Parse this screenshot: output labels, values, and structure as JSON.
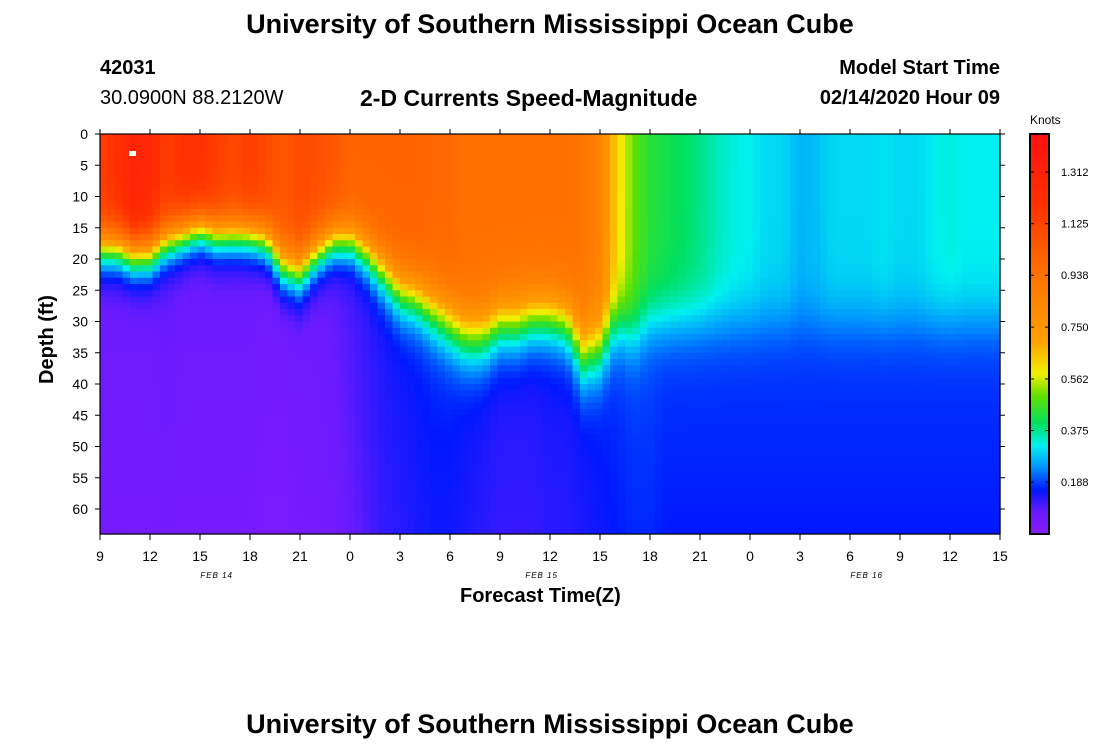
{
  "page": {
    "title_top": "University of Southern Mississippi Ocean Cube",
    "title_bottom": "University of Southern Mississippi Ocean Cube",
    "station_id": "42031",
    "station_coords": "30.0900N 88.2120W",
    "plot_title": "2-D Currents Speed-Magnitude",
    "model_start_label": "Model Start Time",
    "model_start_value": "02/14/2020 Hour 09"
  },
  "chart_data": {
    "type": "heatmap",
    "title": "2-D Currents Speed-Magnitude",
    "xlabel": "Forecast Time(Z)",
    "ylabel": "Depth (ft)",
    "x_ticks": [
      "9",
      "12",
      "15",
      "18",
      "21",
      "0",
      "3",
      "6",
      "9",
      "12",
      "15",
      "18",
      "21",
      "0",
      "3",
      "6",
      "9",
      "12",
      "15"
    ],
    "x_range_hours": [
      0,
      54
    ],
    "date_labels": [
      {
        "text": "FEB 14",
        "hour": 7
      },
      {
        "text": "FEB 15",
        "hour": 26.5
      },
      {
        "text": "FEB 16",
        "hour": 46
      }
    ],
    "y_ticks": [
      0,
      5,
      10,
      15,
      20,
      25,
      30,
      35,
      40,
      45,
      50,
      55,
      60
    ],
    "ylim": [
      0,
      64
    ],
    "colorbar": {
      "label": "Knots",
      "ticks": [
        "1.312",
        "1.125",
        "0.938",
        "0.750",
        "0.562",
        "0.375",
        "0.188"
      ],
      "tick_values": [
        1.312,
        1.125,
        0.938,
        0.75,
        0.562,
        0.375,
        0.188
      ],
      "range": [
        0,
        1.45
      ]
    },
    "profile_hours": [
      0,
      1,
      2,
      3,
      4,
      5,
      6,
      7,
      8,
      9,
      10,
      11,
      12,
      13,
      14,
      15,
      16,
      17,
      18,
      19,
      20,
      21,
      22,
      23,
      24,
      25,
      26,
      27,
      28,
      29,
      30,
      31,
      32,
      33,
      34,
      35,
      36,
      37,
      38,
      39,
      40,
      41,
      42,
      43,
      44,
      45,
      46,
      47,
      48,
      49,
      50,
      51,
      52,
      53,
      54
    ],
    "surface_speed_knots": [
      1.15,
      1.2,
      1.3,
      1.25,
      1.15,
      1.2,
      1.2,
      1.15,
      1.1,
      1.15,
      1.1,
      1.05,
      1.1,
      1.08,
      1.05,
      1.0,
      1.0,
      1.0,
      1.0,
      1.0,
      0.98,
      0.98,
      0.95,
      0.95,
      0.95,
      0.95,
      0.95,
      0.95,
      0.95,
      0.92,
      0.85,
      0.62,
      0.5,
      0.44,
      0.42,
      0.4,
      0.38,
      0.35,
      0.33,
      0.32,
      0.3,
      0.3,
      0.27,
      0.28,
      0.3,
      0.3,
      0.3,
      0.31,
      0.3,
      0.3,
      0.32,
      0.33,
      0.32,
      0.32,
      0.32
    ],
    "mixed_layer_depth_ft": [
      18,
      18,
      19,
      19,
      17,
      16,
      15,
      16,
      16,
      16,
      17,
      21,
      22,
      19,
      17,
      17,
      19,
      22,
      25,
      26,
      28,
      30,
      32,
      32,
      30,
      30,
      29,
      29,
      30,
      35,
      34,
      30,
      32,
      30,
      30,
      30,
      30,
      30,
      30,
      30,
      30,
      30,
      30,
      30,
      30,
      30,
      30,
      30,
      30,
      30,
      30,
      30,
      30,
      30,
      30
    ],
    "bottom_speed_knots": [
      0.05,
      0.05,
      0.05,
      0.05,
      0.06,
      0.05,
      0.05,
      0.05,
      0.05,
      0.05,
      0.04,
      0.04,
      0.05,
      0.05,
      0.06,
      0.08,
      0.1,
      0.12,
      0.13,
      0.14,
      0.15,
      0.15,
      0.14,
      0.13,
      0.12,
      0.12,
      0.12,
      0.13,
      0.13,
      0.14,
      0.15,
      0.16,
      0.17,
      0.17,
      0.16,
      0.16,
      0.16,
      0.16,
      0.16,
      0.16,
      0.16,
      0.16,
      0.16,
      0.16,
      0.16,
      0.16,
      0.16,
      0.16,
      0.16,
      0.16,
      0.16,
      0.16,
      0.16,
      0.16,
      0.16
    ],
    "color_stops": [
      {
        "value": 0.0,
        "color": "#8a1aff"
      },
      {
        "value": 0.08,
        "color": "#6a1aff"
      },
      {
        "value": 0.16,
        "color": "#0018ff"
      },
      {
        "value": 0.24,
        "color": "#0090ff"
      },
      {
        "value": 0.32,
        "color": "#00f0f0"
      },
      {
        "value": 0.4,
        "color": "#00e060"
      },
      {
        "value": 0.5,
        "color": "#60e000"
      },
      {
        "value": 0.58,
        "color": "#f0f000"
      },
      {
        "value": 0.7,
        "color": "#ffa000"
      },
      {
        "value": 0.95,
        "color": "#ff7000"
      },
      {
        "value": 1.2,
        "color": "#ff3000"
      },
      {
        "value": 1.45,
        "color": "#ff1010"
      }
    ]
  }
}
